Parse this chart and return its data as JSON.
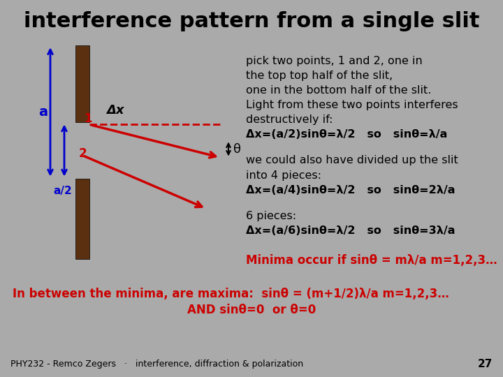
{
  "title": "interference pattern from a single slit",
  "title_fontsize": 22,
  "title_fontweight": "bold",
  "footer_text": "PHY232 - Remco Zegers   ·   interference, diffraction & polarization",
  "footer_page": "27",
  "text_block1": [
    "pick two points, 1 and 2, one in",
    "the top top half of the slit,",
    "one in the bottom half of the slit.",
    "Light from these two points interferes",
    "destructively if:",
    "Δx=(a/2)sinθ=λ/2   so   sinθ=λ/a"
  ],
  "text_block2": [
    "we could also have divided up the slit",
    "into 4 pieces:",
    "Δx=(a/4)sinθ=λ/2   so   sinθ=2λ/a"
  ],
  "text_block3": [
    "6 pieces:",
    "Δx=(a/6)sinθ=λ/2   so   sinθ=3λ/a"
  ],
  "text_minima": "Minima occur if sinθ = mλ/a m=1,2,3…",
  "text_maxima": "In between the minima, are maxima:  sinθ = (m+1/2)λ/a m=1,2,3…",
  "text_and": "AND sinθ=0  or θ=0",
  "slit_color": "#5a3010",
  "blue_color": "#0000cc",
  "red_color": "#cc0000",
  "black_color": "#000000",
  "gray_color": "#aaaaaa",
  "footer_bg": "#aaaaaa",
  "body_bg": "#ffffff"
}
